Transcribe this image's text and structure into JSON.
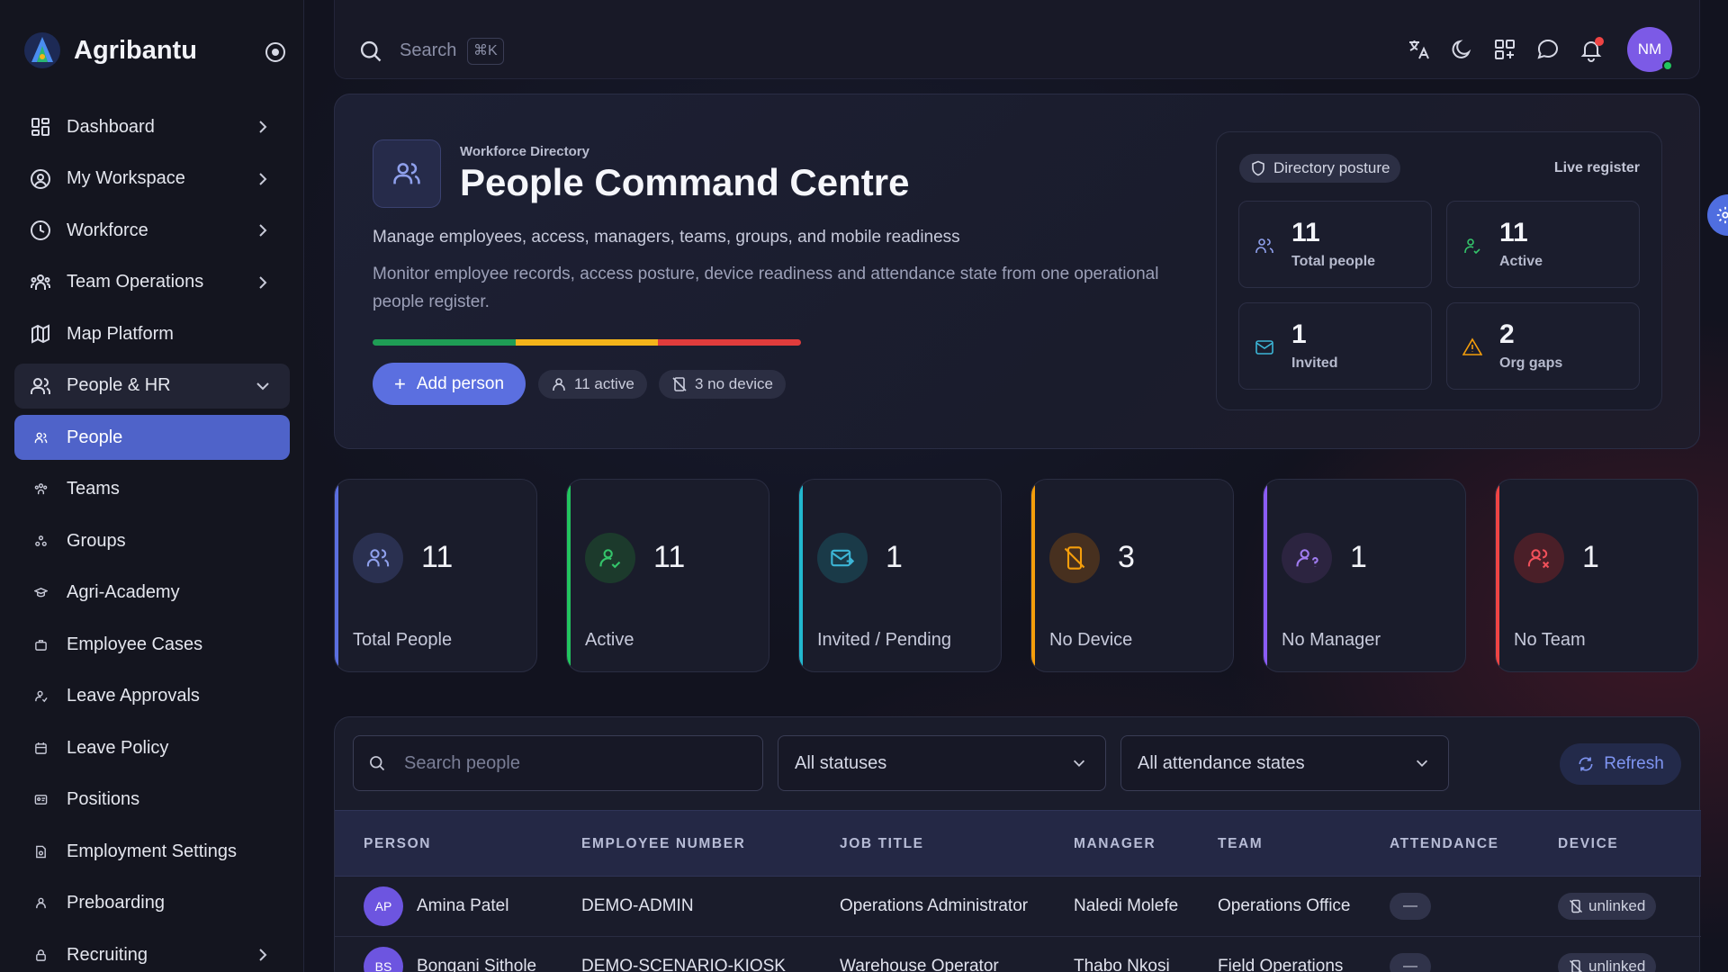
{
  "brand": {
    "name": "Agribantu"
  },
  "sidebar": {
    "items": [
      {
        "label": "Dashboard",
        "icon": "dashboard-icon"
      },
      {
        "label": "My Workspace",
        "icon": "user-circle-icon"
      },
      {
        "label": "Workforce",
        "icon": "clock-icon"
      },
      {
        "label": "Team Operations",
        "icon": "team-icon"
      },
      {
        "label": "Map Platform",
        "icon": "map-icon"
      },
      {
        "label": "People & HR",
        "icon": "people-icon"
      }
    ],
    "sub_items": [
      {
        "label": "People"
      },
      {
        "label": "Teams"
      },
      {
        "label": "Groups"
      },
      {
        "label": "Agri-Academy"
      },
      {
        "label": "Employee Cases"
      },
      {
        "label": "Leave Approvals"
      },
      {
        "label": "Leave Policy"
      },
      {
        "label": "Positions"
      },
      {
        "label": "Employment Settings"
      },
      {
        "label": "Preboarding"
      },
      {
        "label": "Recruiting"
      }
    ]
  },
  "topbar": {
    "search_placeholder": "Search",
    "shortcut": "⌘K",
    "avatar_initials": "NM"
  },
  "hero": {
    "eyebrow": "Workforce Directory",
    "title": "People Command Centre",
    "subtitle": "Manage employees, access, managers, teams, groups, and mobile readiness",
    "description": "Monitor employee records, access posture, device readiness and attendance state from one operational people register.",
    "add_button": "Add person",
    "chip_active": "11 active",
    "chip_no_device": "3 no device",
    "bar_colors": [
      "#1f9d55",
      "#f4b41a",
      "#e03c3c"
    ]
  },
  "posture": {
    "pill": "Directory posture",
    "live": "Live register",
    "cards": [
      {
        "value": "11",
        "label": "Total people"
      },
      {
        "value": "11",
        "label": "Active"
      },
      {
        "value": "1",
        "label": "Invited"
      },
      {
        "value": "2",
        "label": "Org gaps"
      }
    ]
  },
  "stats": [
    {
      "value": "11",
      "label": "Total People",
      "color": "#5b6fe0"
    },
    {
      "value": "11",
      "label": "Active",
      "color": "#22c55e"
    },
    {
      "value": "1",
      "label": "Invited / Pending",
      "color": "#22b8cf"
    },
    {
      "value": "3",
      "label": "No Device",
      "color": "#f59e0b"
    },
    {
      "value": "1",
      "label": "No Manager",
      "color": "#8b5cf6"
    },
    {
      "value": "1",
      "label": "No Team",
      "color": "#ef4444"
    }
  ],
  "filters": {
    "search_placeholder": "Search people",
    "status_value": "All statuses",
    "attendance_value": "All attendance states",
    "refresh_label": "Refresh"
  },
  "table": {
    "headers": [
      "PERSON",
      "EMPLOYEE NUMBER",
      "JOB TITLE",
      "MANAGER",
      "TEAM",
      "ATTENDANCE",
      "DEVICE"
    ],
    "rows": [
      {
        "initials": "AP",
        "name": "Amina Patel",
        "employee_number": "DEMO-ADMIN",
        "job_title": "Operations Administrator",
        "manager": "Naledi Molefe",
        "team": "Operations Office",
        "attendance": "—",
        "device": "unlinked"
      },
      {
        "initials": "BS",
        "name": "Bongani Sithole",
        "employee_number": "DEMO-SCENARIO-KIOSK",
        "job_title": "Warehouse Operator",
        "manager": "Thabo Nkosi",
        "team": "Field Operations",
        "attendance": "—",
        "device": "unlinked"
      }
    ]
  }
}
